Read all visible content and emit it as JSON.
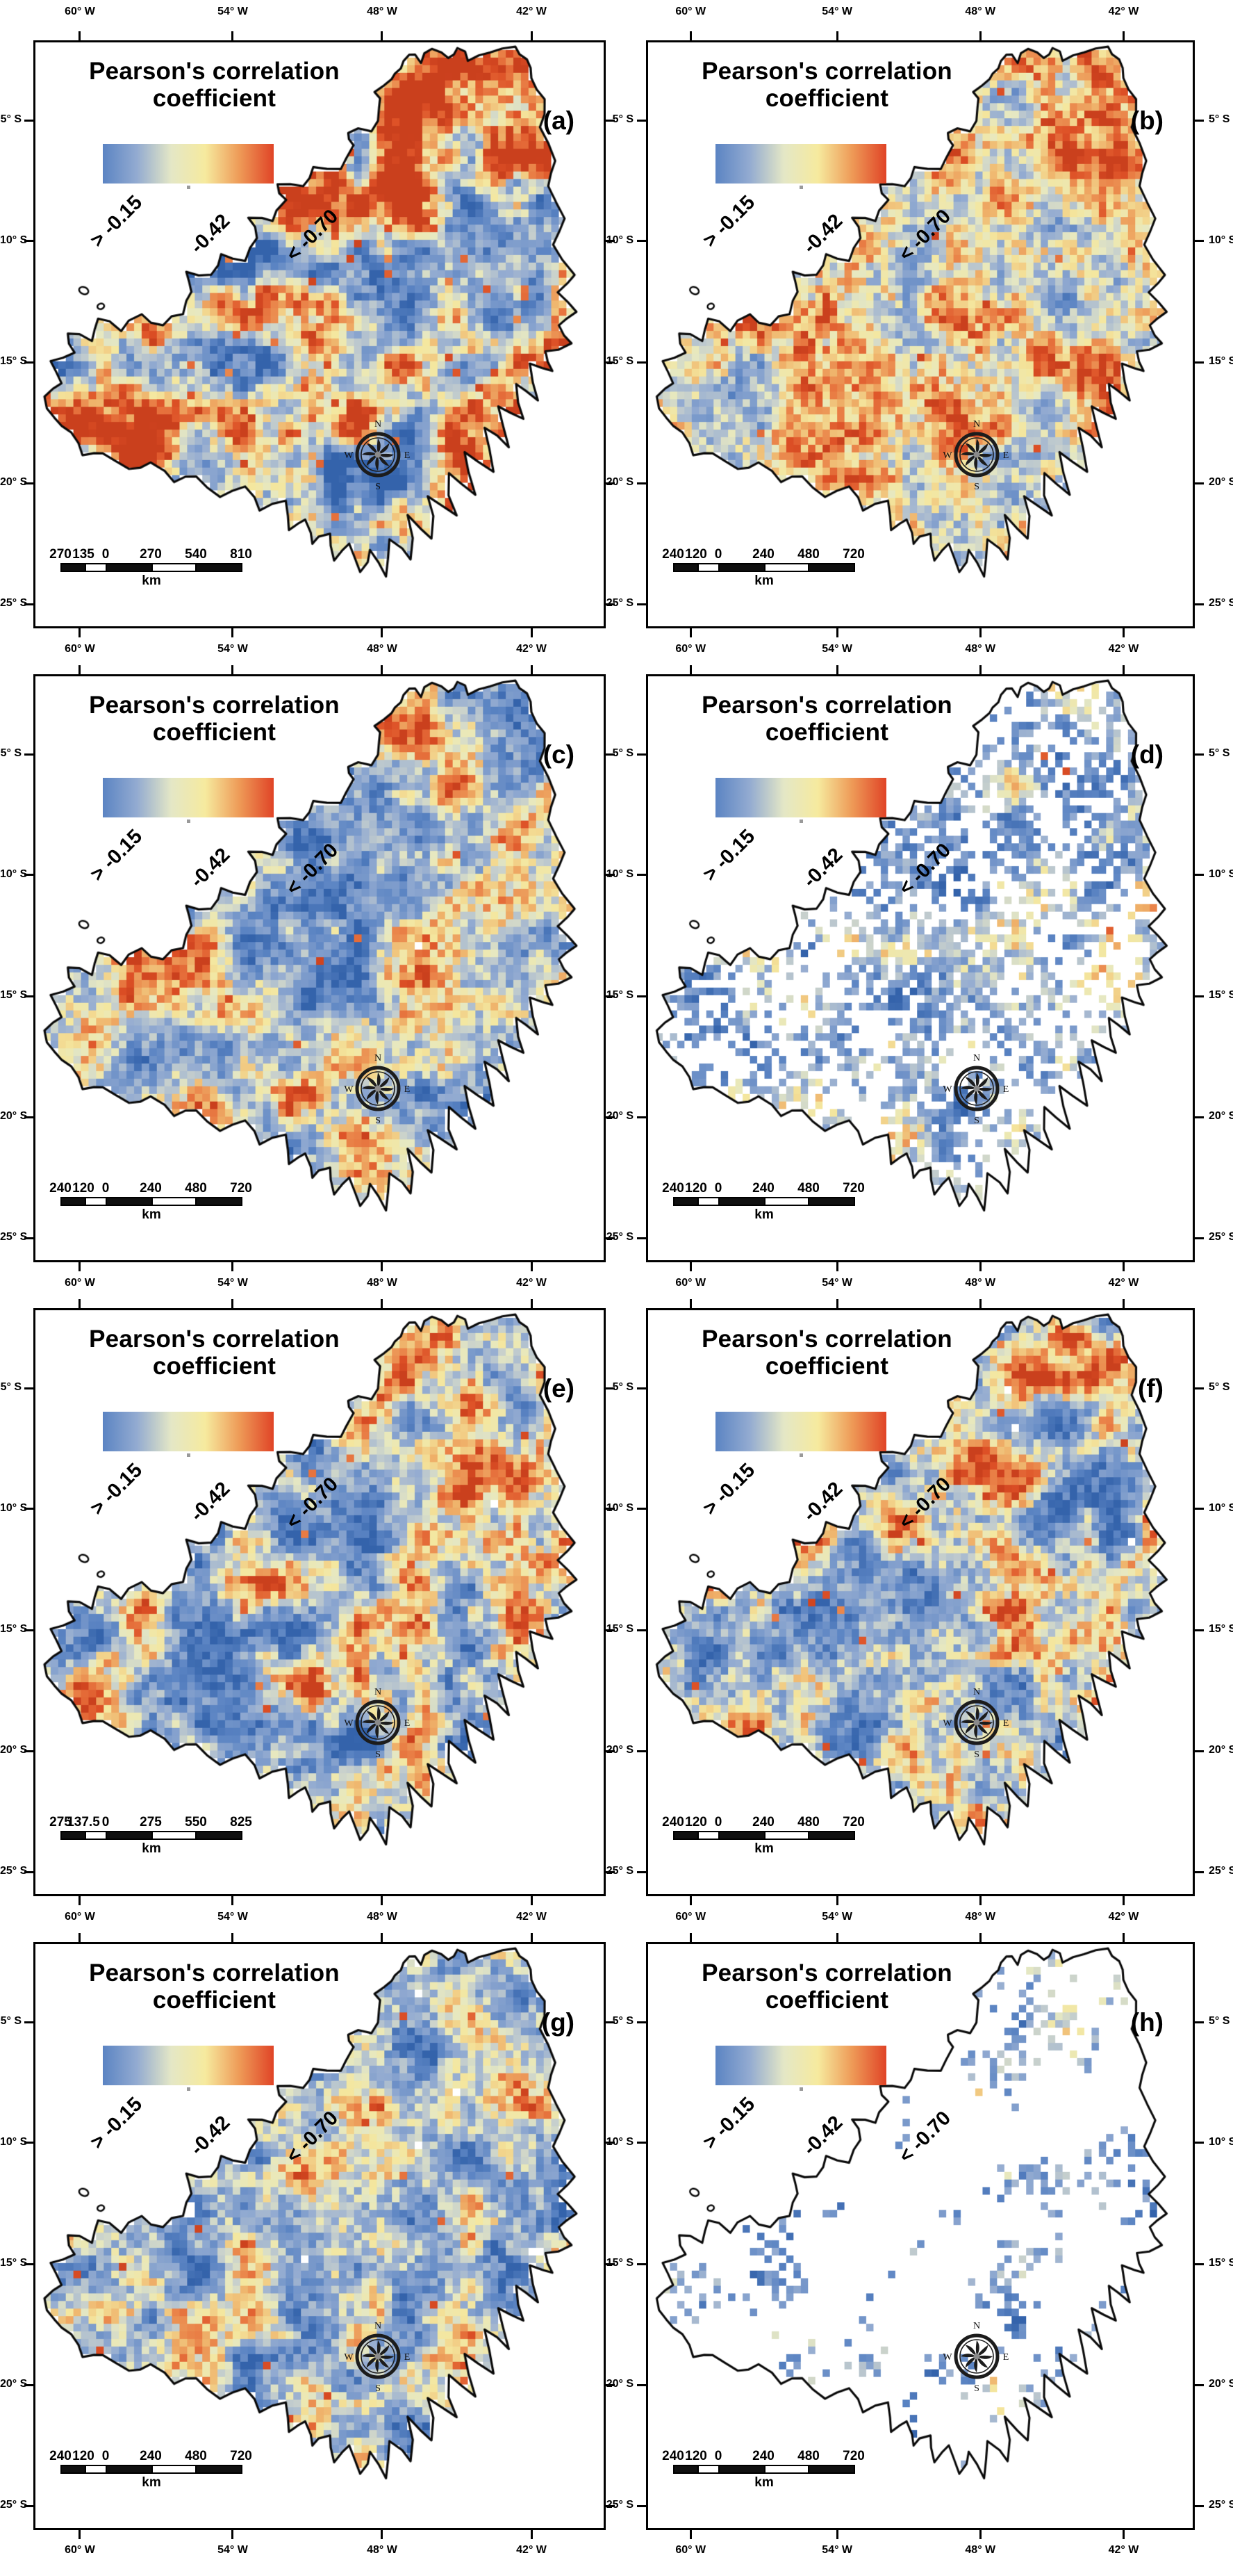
{
  "shared": {
    "title_line1": "Pearson's correlation",
    "title_line2": "coefficient",
    "legend_labels": [
      "> -0.15",
      "-0.42",
      "< -0.70"
    ],
    "scalebar_unit": "km",
    "compass": [
      "N",
      "E",
      "S",
      "W"
    ]
  },
  "axis": {
    "lon": [
      "60° W",
      "54° W",
      "48° W",
      "42° W"
    ],
    "lat": [
      "5° S",
      "10° S",
      "15° S",
      "20° S",
      "25° S"
    ]
  },
  "colors": {
    "background": "#ffffff",
    "outline": "#0a0a0a",
    "colorbar_gradient": [
      "#5b84c3",
      "#93abd1",
      "#e4e7c6",
      "#f6ea9e",
      "#ee9a57",
      "#e04427"
    ],
    "ramp_stops": [
      [
        0.0,
        "#2f5fa8"
      ],
      [
        0.18,
        "#5b84c3"
      ],
      [
        0.38,
        "#93abd1"
      ],
      [
        0.5,
        "#c6cfcd"
      ],
      [
        0.56,
        "#e6e8c2"
      ],
      [
        0.64,
        "#f4e79f"
      ],
      [
        0.74,
        "#efb36b"
      ],
      [
        0.84,
        "#e97e45"
      ],
      [
        0.92,
        "#dd5026"
      ],
      [
        1.0,
        "#c43a1a"
      ]
    ]
  },
  "map_shape": [
    [
      0.64,
      0.045
    ],
    [
      0.655,
      0.018
    ],
    [
      0.675,
      0.032
    ],
    [
      0.7,
      0.012
    ],
    [
      0.725,
      0.028
    ],
    [
      0.742,
      0.008
    ],
    [
      0.762,
      0.03
    ],
    [
      0.8,
      0.018
    ],
    [
      0.845,
      0.008
    ],
    [
      0.862,
      0.03
    ],
    [
      0.872,
      0.06
    ],
    [
      0.896,
      0.098
    ],
    [
      0.89,
      0.148
    ],
    [
      0.912,
      0.2
    ],
    [
      0.905,
      0.248
    ],
    [
      0.93,
      0.3
    ],
    [
      0.912,
      0.345
    ],
    [
      0.948,
      0.395
    ],
    [
      0.922,
      0.428
    ],
    [
      0.952,
      0.462
    ],
    [
      0.922,
      0.488
    ],
    [
      0.94,
      0.515
    ],
    [
      0.898,
      0.53
    ],
    [
      0.912,
      0.56
    ],
    [
      0.872,
      0.552
    ],
    [
      0.885,
      0.612
    ],
    [
      0.845,
      0.585
    ],
    [
      0.858,
      0.648
    ],
    [
      0.815,
      0.622
    ],
    [
      0.832,
      0.692
    ],
    [
      0.788,
      0.662
    ],
    [
      0.805,
      0.732
    ],
    [
      0.758,
      0.7
    ],
    [
      0.772,
      0.772
    ],
    [
      0.725,
      0.738
    ],
    [
      0.738,
      0.812
    ],
    [
      0.692,
      0.775
    ],
    [
      0.7,
      0.848
    ],
    [
      0.658,
      0.812
    ],
    [
      0.662,
      0.886
    ],
    [
      0.625,
      0.852
    ],
    [
      0.618,
      0.912
    ],
    [
      0.592,
      0.868
    ],
    [
      0.57,
      0.908
    ],
    [
      0.552,
      0.858
    ],
    [
      0.528,
      0.885
    ],
    [
      0.515,
      0.838
    ],
    [
      0.488,
      0.862
    ],
    [
      0.478,
      0.818
    ],
    [
      0.448,
      0.835
    ],
    [
      0.438,
      0.788
    ],
    [
      0.398,
      0.8
    ],
    [
      0.368,
      0.762
    ],
    [
      0.325,
      0.775
    ],
    [
      0.285,
      0.742
    ],
    [
      0.245,
      0.752
    ],
    [
      0.205,
      0.722
    ],
    [
      0.162,
      0.732
    ],
    [
      0.122,
      0.702
    ],
    [
      0.085,
      0.708
    ],
    [
      0.062,
      0.668
    ],
    [
      0.032,
      0.645
    ],
    [
      0.018,
      0.605
    ],
    [
      0.045,
      0.582
    ],
    [
      0.028,
      0.548
    ],
    [
      0.068,
      0.532
    ],
    [
      0.055,
      0.498
    ],
    [
      0.098,
      0.508
    ],
    [
      0.108,
      0.472
    ],
    [
      0.148,
      0.492
    ],
    [
      0.185,
      0.468
    ],
    [
      0.225,
      0.482
    ],
    [
      0.258,
      0.462
    ],
    [
      0.278,
      0.425
    ],
    [
      0.268,
      0.392
    ],
    [
      0.308,
      0.398
    ],
    [
      0.328,
      0.362
    ],
    [
      0.368,
      0.372
    ],
    [
      0.388,
      0.332
    ],
    [
      0.378,
      0.302
    ],
    [
      0.418,
      0.308
    ],
    [
      0.438,
      0.272
    ],
    [
      0.428,
      0.242
    ],
    [
      0.468,
      0.248
    ],
    [
      0.488,
      0.212
    ],
    [
      0.538,
      0.218
    ],
    [
      0.558,
      0.178
    ],
    [
      0.548,
      0.152
    ],
    [
      0.588,
      0.152
    ],
    [
      0.608,
      0.112
    ],
    [
      0.598,
      0.082
    ],
    [
      0.625,
      0.062
    ]
  ],
  "panels": [
    {
      "letter": "(a)",
      "scalebar": {
        "labels": [
          "270",
          "135",
          "0",
          "270",
          "540",
          "810"
        ]
      },
      "map_style": {
        "seed": 101,
        "density": 0.975,
        "squash": 1.0,
        "bias": 0.03,
        "north_hot": 0.52,
        "warm_speck": 0.018
      }
    },
    {
      "letter": "(b)",
      "scalebar": {
        "labels": [
          "240",
          "120",
          "0",
          "240",
          "480",
          "720"
        ]
      },
      "map_style": {
        "seed": 202,
        "density": 0.975,
        "squash": 0.62,
        "bias": 0.1,
        "north_hot": 0.22,
        "warm_speck": 0.008
      }
    },
    {
      "letter": "(c)",
      "scalebar": {
        "labels": [
          "240",
          "120",
          "0",
          "240",
          "480",
          "720"
        ]
      },
      "map_style": {
        "seed": 303,
        "density": 0.96,
        "squash": 0.68,
        "bias": -0.03,
        "north_hot": 0.06,
        "warm_speck": 0.004
      }
    },
    {
      "letter": "(d)",
      "scalebar": {
        "labels": [
          "240",
          "120",
          "0",
          "240",
          "480",
          "720"
        ]
      },
      "map_style": {
        "seed": 404,
        "density": 0.5,
        "squash": 0.5,
        "bias": -0.13,
        "north_hot": 0,
        "warm_speck": 0.001
      }
    },
    {
      "letter": "(e)",
      "scalebar": {
        "labels": [
          "275",
          "137.5",
          "0",
          "275",
          "550",
          "825"
        ]
      },
      "map_style": {
        "seed": 505,
        "density": 0.95,
        "squash": 0.85,
        "bias": -0.01,
        "north_hot": 0.15,
        "warm_speck": 0.007
      }
    },
    {
      "letter": "(f)",
      "scalebar": {
        "labels": [
          "240",
          "120",
          "0",
          "240",
          "480",
          "720"
        ]
      },
      "map_style": {
        "seed": 606,
        "density": 0.96,
        "squash": 0.78,
        "bias": 0.01,
        "north_hot": 0.1,
        "warm_speck": 0.005
      }
    },
    {
      "letter": "(g)",
      "scalebar": {
        "labels": [
          "240",
          "120",
          "0",
          "240",
          "480",
          "720"
        ]
      },
      "map_style": {
        "seed": 707,
        "density": 0.92,
        "squash": 0.68,
        "bias": -0.07,
        "north_hot": 0.03,
        "warm_speck": 0.003
      }
    },
    {
      "letter": "(h)",
      "scalebar": {
        "labels": [
          "240",
          "120",
          "0",
          "240",
          "480",
          "720"
        ]
      },
      "map_style": {
        "seed": 808,
        "density": 0.28,
        "squash": 0.42,
        "bias": -0.16,
        "north_hot": 0,
        "warm_speck": 0
      }
    }
  ]
}
